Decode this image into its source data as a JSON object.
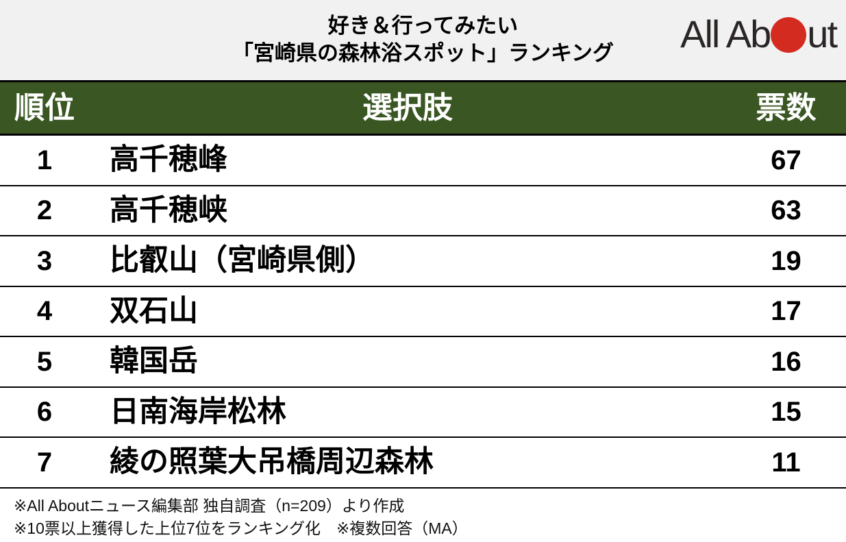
{
  "colors": {
    "band_background": "#f1f1f1",
    "table_header_green": "#3a5622",
    "logo_dot_red": "#d32b20",
    "border_black": "#000000"
  },
  "header": {
    "title_line1": "好き＆行ってみたい",
    "title_line2": "「宮崎県の森林浴スポット」ランキング",
    "logo": {
      "name": "All About",
      "text_before_dot": "All Ab",
      "text_after_dot": "ut"
    }
  },
  "table": {
    "columns": {
      "rank": "順位",
      "choice": "選択肢",
      "votes": "票数"
    },
    "rows": [
      {
        "rank": "1",
        "name": "高千穂峰",
        "votes": "67"
      },
      {
        "rank": "2",
        "name": "高千穂峡",
        "votes": "63"
      },
      {
        "rank": "3",
        "name": "比叡山（宮崎県側）",
        "votes": "19"
      },
      {
        "rank": "4",
        "name": "双石山",
        "votes": "17"
      },
      {
        "rank": "5",
        "name": "韓国岳",
        "votes": "16"
      },
      {
        "rank": "6",
        "name": "日南海岸松林",
        "votes": "15"
      },
      {
        "rank": "7",
        "name": "綾の照葉大吊橋周辺森林",
        "votes": "11"
      }
    ]
  },
  "footnotes": {
    "line1": "※All Aboutニュース編集部 独自調査（n=209）より作成",
    "line2": "※10票以上獲得した上位7位をランキング化　※複数回答（MA）"
  },
  "chart_data": {
    "type": "table",
    "title": "好き＆行ってみたい「宮崎県の森林浴スポット」ランキング",
    "columns": [
      "順位",
      "選択肢",
      "票数"
    ],
    "categories": [
      "高千穂峰",
      "高千穂峡",
      "比叡山（宮崎県側）",
      "双石山",
      "韓国岳",
      "日南海岸松林",
      "綾の照葉大吊橋周辺森林"
    ],
    "values": [
      67,
      63,
      19,
      17,
      16,
      15,
      11
    ],
    "sample_size": 209,
    "notes": [
      "※All Aboutニュース編集部 独自調査（n=209）より作成",
      "※10票以上獲得した上位7位をランキング化　※複数回答（MA）"
    ]
  }
}
